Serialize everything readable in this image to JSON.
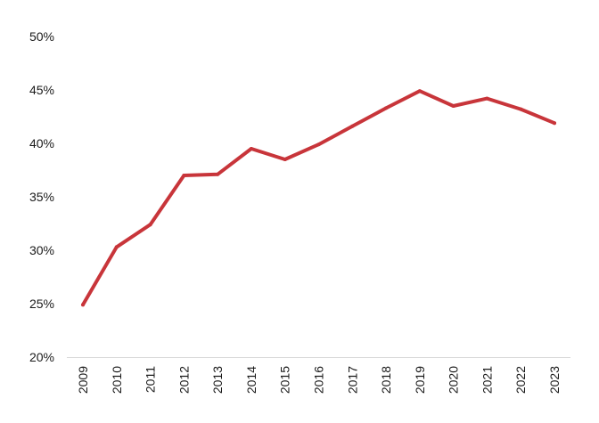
{
  "chart_data": {
    "type": "line",
    "title": "",
    "xlabel": "",
    "ylabel": "",
    "categories": [
      "2009",
      "2010",
      "2011",
      "2012",
      "2013",
      "2014",
      "2015",
      "2016",
      "2017",
      "2018",
      "2019",
      "2020",
      "2021",
      "2022",
      "2023"
    ],
    "series": [
      {
        "values": [
          24.9,
          30.3,
          32.4,
          37.0,
          37.1,
          39.5,
          38.5,
          39.9,
          41.6,
          43.3,
          44.9,
          43.5,
          44.2,
          43.2,
          41.9
        ],
        "color": "#c8353a"
      }
    ],
    "ylim": [
      20,
      50
    ],
    "yticks": [
      20,
      25,
      30,
      35,
      40,
      45,
      50
    ],
    "ytick_labels": [
      "20%",
      "25%",
      "30%",
      "35%",
      "40%",
      "45%",
      "50%"
    ],
    "xtick_orientation": "vertical",
    "grid": false,
    "legend": "none",
    "axis_color": "#d9d9d9"
  }
}
